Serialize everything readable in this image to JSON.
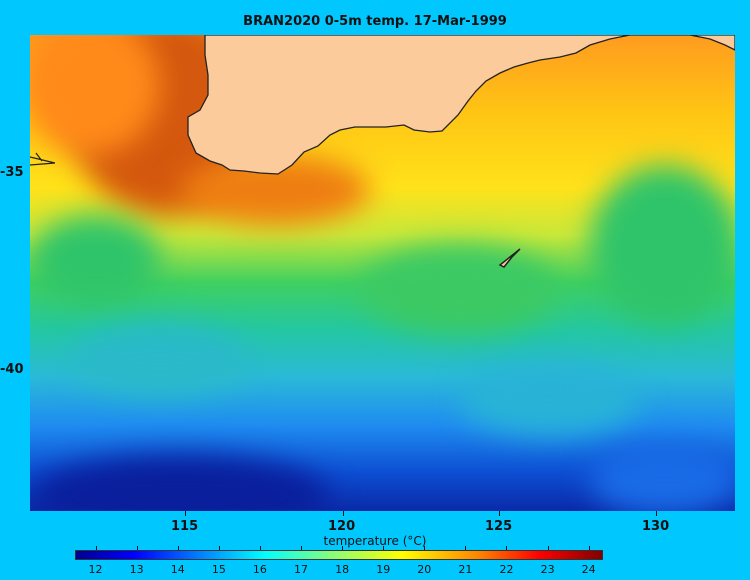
{
  "title": "BRAN2020 0-5m temp. 17-Mar-1999",
  "chart_data": {
    "type": "heatmap",
    "title": "BRAN2020 0-5m temp. 17-Mar-1999",
    "xlabel": "",
    "ylabel": "",
    "x_ticks": [
      "115",
      "120",
      "125",
      "130"
    ],
    "y_ticks": [
      "-35",
      "-40"
    ],
    "colorbar": {
      "label": "temperature (°C)",
      "ticks": [
        "12",
        "13",
        "14",
        "15",
        "16",
        "17",
        "18",
        "19",
        "20",
        "21",
        "22",
        "23",
        "24"
      ],
      "range": [
        11.5,
        24.3
      ],
      "colormap": "jet"
    },
    "land_color": "#fccb9b",
    "background_color": "#00c8ff"
  }
}
